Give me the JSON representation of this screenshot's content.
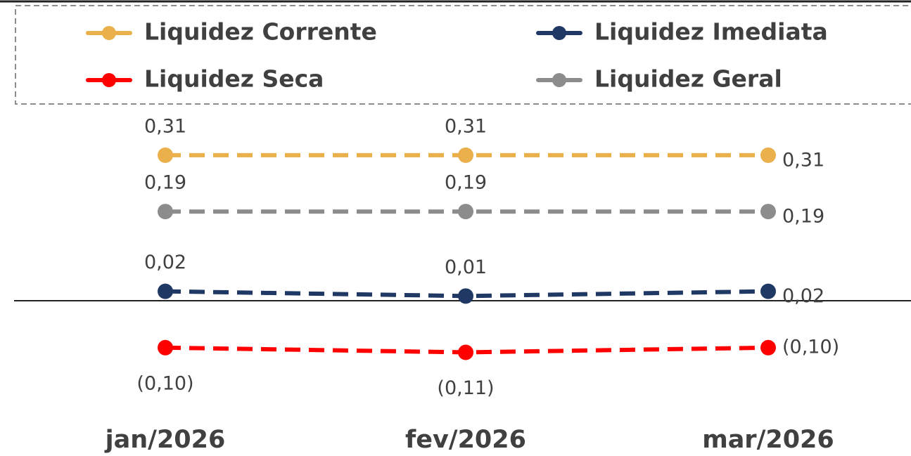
{
  "chart_data": {
    "type": "line",
    "categories": [
      "jan/2026",
      "fev/2026",
      "mar/2026"
    ],
    "series": [
      {
        "name": "Liquidez Corrente",
        "color": "#E9B04C",
        "values": [
          0.31,
          0.31,
          0.31
        ],
        "value_labels": [
          "0,31",
          "0,31",
          "0,31"
        ]
      },
      {
        "name": "Liquidez Imediata",
        "color": "#1F3864",
        "values": [
          0.02,
          0.01,
          0.02
        ],
        "value_labels": [
          "0,02",
          "0,01",
          "0,02"
        ]
      },
      {
        "name": "Liquidez Seca",
        "color": "#FF0000",
        "values": [
          -0.1,
          -0.11,
          -0.1
        ],
        "value_labels": [
          "(0,10)",
          "(0,11)",
          "(0,10)"
        ]
      },
      {
        "name": "Liquidez Geral",
        "color": "#8C8C8C",
        "values": [
          0.19,
          0.19,
          0.19
        ],
        "value_labels": [
          "0,19",
          "0,19",
          "0,19"
        ]
      }
    ],
    "ylim": [
      -0.2,
      0.4
    ],
    "legend": "top",
    "line_style": "dashed"
  }
}
